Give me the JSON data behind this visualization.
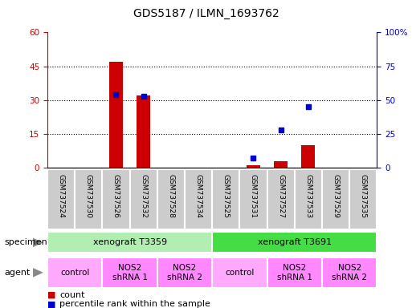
{
  "title": "GDS5187 / ILMN_1693762",
  "samples": [
    "GSM737524",
    "GSM737530",
    "GSM737526",
    "GSM737532",
    "GSM737528",
    "GSM737534",
    "GSM737525",
    "GSM737531",
    "GSM737527",
    "GSM737533",
    "GSM737529",
    "GSM737535"
  ],
  "counts": [
    0,
    0,
    47,
    32,
    0,
    0,
    0,
    1,
    3,
    10,
    0,
    0
  ],
  "percentile": [
    null,
    null,
    54,
    53,
    null,
    null,
    null,
    7,
    28,
    45,
    null,
    null
  ],
  "ylim_left": [
    0,
    60
  ],
  "ylim_right": [
    0,
    100
  ],
  "yticks_left": [
    0,
    15,
    30,
    45,
    60
  ],
  "yticks_right": [
    0,
    25,
    50,
    75,
    100
  ],
  "ytick_labels_right": [
    "0",
    "25",
    "50",
    "75",
    "100%"
  ],
  "specimen_groups": [
    {
      "label": "xenograft T3359",
      "start": 0,
      "end": 5,
      "color": "#B2EEB2"
    },
    {
      "label": "xenograft T3691",
      "start": 6,
      "end": 11,
      "color": "#44DD44"
    }
  ],
  "agent_groups": [
    {
      "label": "control",
      "start": 0,
      "end": 1,
      "color": "#FFAAFF"
    },
    {
      "label": "NOS2\nshRNA 1",
      "start": 2,
      "end": 3,
      "color": "#FF88FF"
    },
    {
      "label": "NOS2\nshRNA 2",
      "start": 4,
      "end": 5,
      "color": "#FF88FF"
    },
    {
      "label": "control",
      "start": 6,
      "end": 7,
      "color": "#FFAAFF"
    },
    {
      "label": "NOS2\nshRNA 1",
      "start": 8,
      "end": 9,
      "color": "#FF88FF"
    },
    {
      "label": "NOS2\nshRNA 2",
      "start": 10,
      "end": 11,
      "color": "#FF88FF"
    }
  ],
  "bar_color": "#CC0000",
  "dot_color": "#0000CC",
  "grid_color": "#000000",
  "background_color": "#FFFFFF",
  "left_axis_color": "#CC0000",
  "right_axis_color": "#0000CC",
  "sample_box_color": "#CCCCCC",
  "figsize": [
    5.13,
    3.84
  ],
  "dpi": 100
}
